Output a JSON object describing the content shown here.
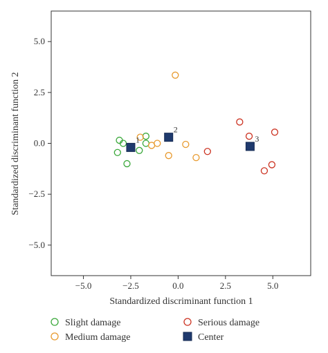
{
  "chart_data": {
    "type": "scatter",
    "title": "",
    "xlabel": "Standardized discriminant function 1",
    "ylabel": "Standardized discriminant function 2",
    "xlim": [
      -6.7,
      7.0
    ],
    "ylim": [
      -6.5,
      6.5
    ],
    "x_ticks": [
      -5.0,
      -2.5,
      0.0,
      2.5,
      5.0
    ],
    "x_tick_labels": [
      "−5.0",
      "−2.5",
      "0.0",
      "2.5",
      "5.0"
    ],
    "y_ticks": [
      5.0,
      2.5,
      0.0,
      -2.5,
      -5.0
    ],
    "y_tick_labels": [
      "5.0",
      "2.5",
      "0.0",
      "−2.5",
      "−5.0"
    ],
    "grid": false,
    "legend_position": "bottom",
    "series": [
      {
        "name": "Slight damage",
        "marker": "circle-open",
        "color": "#3aa83a",
        "points": [
          [
            -3.1,
            0.15
          ],
          [
            -2.9,
            0.0
          ],
          [
            -1.7,
            0.35
          ],
          [
            -3.2,
            -0.45
          ],
          [
            -2.7,
            -1.0
          ],
          [
            -2.05,
            -0.35
          ],
          [
            -1.7,
            0.0
          ]
        ]
      },
      {
        "name": "Medium damage",
        "marker": "circle-open",
        "color": "#e89a2e",
        "points": [
          [
            -0.15,
            3.35
          ],
          [
            -2.0,
            0.3
          ],
          [
            -1.4,
            -0.1
          ],
          [
            -1.1,
            0.0
          ],
          [
            -0.5,
            -0.6
          ],
          [
            0.4,
            -0.05
          ],
          [
            0.95,
            -0.7
          ]
        ]
      },
      {
        "name": "Serious damage",
        "marker": "circle-open",
        "color": "#cc3322",
        "points": [
          [
            3.25,
            1.05
          ],
          [
            3.75,
            0.35
          ],
          [
            5.1,
            0.55
          ],
          [
            1.55,
            -0.4
          ],
          [
            4.95,
            -1.05
          ],
          [
            4.55,
            -1.35
          ]
        ]
      },
      {
        "name": "Center",
        "marker": "square-filled",
        "color": "#1f3a6e",
        "points": [
          [
            -2.5,
            -0.2
          ],
          [
            -0.5,
            0.3
          ],
          [
            3.8,
            -0.15
          ]
        ],
        "labels": [
          "1",
          "2",
          "3"
        ]
      }
    ]
  },
  "legend": {
    "items": [
      {
        "label": "Slight damage",
        "color": "#3aa83a",
        "marker": "circle-open"
      },
      {
        "label": "Serious damage",
        "color": "#cc3322",
        "marker": "circle-open"
      },
      {
        "label": "Medium damage",
        "color": "#e89a2e",
        "marker": "circle-open"
      },
      {
        "label": "Center",
        "color": "#1f3a6e",
        "marker": "square-filled"
      }
    ]
  }
}
